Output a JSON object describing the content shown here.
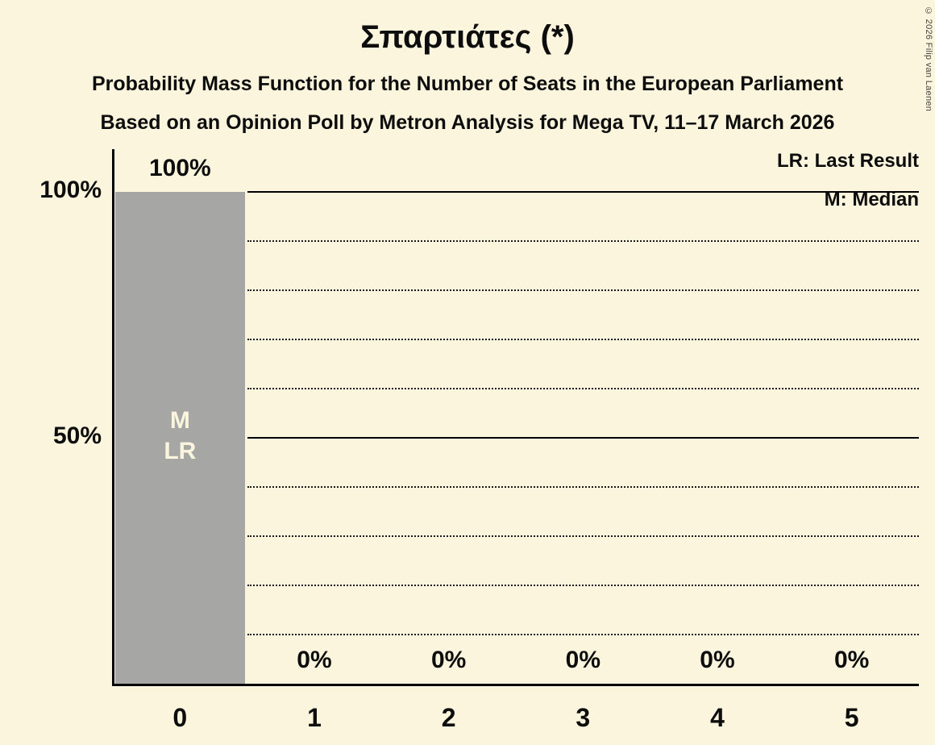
{
  "title": "Σπαρτιάτες (*)",
  "subtitle1": "Probability Mass Function for the Number of Seats in the European Parliament",
  "subtitle2": "Based on an Opinion Poll by Metron Analysis for Mega TV, 11–17 March 2026",
  "copyright": "© 2026 Filip van Laenen",
  "legend": {
    "lr": "LR: Last Result",
    "m": "M: Median"
  },
  "chart_data": {
    "type": "bar",
    "title": "Σπαρτιάτες (*)",
    "xlabel": "",
    "ylabel": "",
    "categories": [
      "0",
      "1",
      "2",
      "3",
      "4",
      "5"
    ],
    "values": [
      100,
      0,
      0,
      0,
      0,
      0
    ],
    "value_labels": [
      "100%",
      "0%",
      "0%",
      "0%",
      "0%",
      "0%"
    ],
    "bar_annotations": [
      [
        "M",
        "LR"
      ],
      [],
      [],
      [],
      [],
      []
    ],
    "y_ticks": [
      {
        "label": "100%",
        "value": 100
      },
      {
        "label": "50%",
        "value": 50
      }
    ],
    "solid_gridlines": [
      100,
      50
    ],
    "dotted_gridlines": [
      90,
      80,
      70,
      60,
      40,
      30,
      20,
      10
    ],
    "ylim": [
      0,
      100
    ],
    "grid": "horizontal",
    "legend_position": "top-right",
    "colors": {
      "background": "#faf5dc",
      "bar": "#a6a6a5",
      "text": "#0d0d0d",
      "bar_label": "#faf5dc"
    }
  }
}
